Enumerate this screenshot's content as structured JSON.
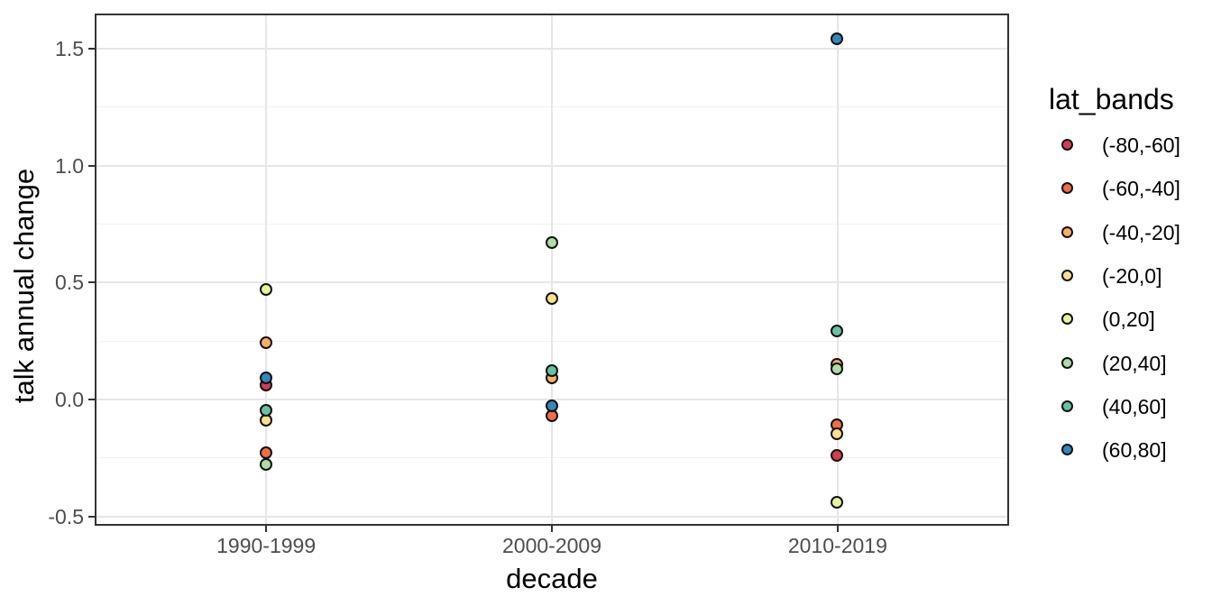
{
  "figure": {
    "background": "#FFFFFF",
    "panel_background": "#FFFFFF",
    "panel_border_color": "#333333",
    "grid_major_color": "#E6E6E6",
    "grid_minor_color": "#F2F2F2",
    "axis_text_color": "#4D4D4D",
    "axis_title_color": "#000000",
    "tick_color": "#333333",
    "point_stroke_color": "#111111"
  },
  "chart_data": {
    "type": "scatter",
    "title": "",
    "xlabel": "decade",
    "ylabel": "talk annual change",
    "legend_title": "lat_bands",
    "legend_position": "right",
    "grid": true,
    "categories": [
      "1990-1999",
      "2000-2009",
      "2010-2019"
    ],
    "y_ticks": [
      1.5,
      1.0,
      0.5,
      0.0,
      -0.5
    ],
    "y_tick_labels": [
      "1.5",
      "1.0",
      "0.5",
      "0.0",
      "-0.5"
    ],
    "y_minor_ticks": [
      1.25,
      0.75,
      0.25,
      -0.25
    ],
    "ylim": [
      -0.54,
      1.65
    ],
    "series": [
      {
        "name": "(-80,-60]",
        "color": "#D53E4F",
        "values": [
          0.06,
          null,
          -0.24
        ]
      },
      {
        "name": "(-60,-40]",
        "color": "#F46D43",
        "values": [
          -0.23,
          -0.07,
          -0.11
        ]
      },
      {
        "name": "(-40,-20]",
        "color": "#FDAE61",
        "values": [
          0.24,
          0.09,
          0.15
        ]
      },
      {
        "name": "(-20,0]",
        "color": "#FEE08B",
        "values": [
          -0.09,
          0.43,
          -0.15
        ]
      },
      {
        "name": "(0,20]",
        "color": "#E6F598",
        "values": [
          0.47,
          null,
          -0.44
        ]
      },
      {
        "name": "(20,40]",
        "color": "#ABDDA4",
        "values": [
          -0.28,
          0.67,
          0.13
        ]
      },
      {
        "name": "(40,60]",
        "color": "#66C2A5",
        "values": [
          -0.05,
          0.12,
          0.29
        ]
      },
      {
        "name": "(60,80]",
        "color": "#3288BD",
        "values": [
          0.09,
          -0.03,
          1.54
        ]
      }
    ]
  }
}
